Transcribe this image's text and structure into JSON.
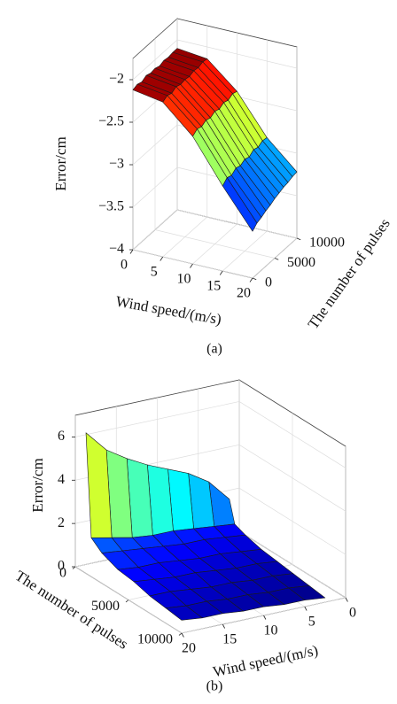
{
  "chart_data": [
    {
      "type": "surface",
      "caption": "(a)",
      "xlabel": "Wind speed/(m/s)",
      "ylabel": "The number of pulses",
      "zlabel": "Error/cm",
      "colormap": "jet",
      "grid": true,
      "x": [
        0,
        5,
        10,
        15,
        20
      ],
      "y": [
        0,
        1000,
        2000,
        3000,
        4000,
        5000,
        6000,
        7000,
        8000,
        9000,
        10000
      ],
      "values": [
        [
          -2.12,
          -2.18,
          -2.5,
          -3.0,
          -3.45
        ],
        [
          -2.1,
          -2.15,
          -2.46,
          -2.95,
          -3.4
        ],
        [
          -2.12,
          -2.17,
          -2.48,
          -2.97,
          -3.38
        ],
        [
          -2.09,
          -2.14,
          -2.45,
          -2.93,
          -3.35
        ],
        [
          -2.11,
          -2.16,
          -2.47,
          -2.95,
          -3.33
        ],
        [
          -2.1,
          -2.15,
          -2.44,
          -2.92,
          -3.3
        ],
        [
          -2.12,
          -2.16,
          -2.46,
          -2.94,
          -3.28
        ],
        [
          -2.1,
          -2.14,
          -2.43,
          -2.9,
          -3.26
        ],
        [
          -2.11,
          -2.15,
          -2.45,
          -2.92,
          -3.25
        ],
        [
          -2.1,
          -2.13,
          -2.42,
          -2.89,
          -3.23
        ],
        [
          -2.1,
          -2.14,
          -2.44,
          -2.9,
          -3.22
        ]
      ],
      "xlim": [
        0,
        20
      ],
      "xticks": [
        0,
        5,
        10,
        15,
        20
      ],
      "ylim": [
        0,
        10000
      ],
      "yticks": [
        0,
        5000,
        10000
      ],
      "zlim": [
        -4,
        -1.75
      ],
      "zticks": [
        {
          "value": -4,
          "label": "−4"
        },
        {
          "value": -3.5,
          "label": "−3.5"
        },
        {
          "value": -3,
          "label": "−3"
        },
        {
          "value": -2.5,
          "label": "−2.5"
        },
        {
          "value": -2,
          "label": "−2"
        }
      ]
    },
    {
      "type": "surface",
      "caption": "(b)",
      "xlabel": "Wind speed/(m/s)",
      "ylabel": "The number of pulses",
      "zlabel": "Error/cm",
      "colormap": "jet",
      "grid": true,
      "x": [
        2.5,
        5,
        7.5,
        10,
        12.5,
        15,
        17.5,
        20
      ],
      "y": [
        1000,
        1500,
        2500,
        4000,
        5500,
        7000,
        8500,
        10000
      ],
      "values": [
        [
          2.0,
          3.0,
          3.6,
          4.0,
          4.4,
          4.9,
          5.5,
          6.5
        ],
        [
          1.0,
          1.1,
          1.2,
          1.3,
          1.3,
          1.4,
          1.6,
          1.8
        ],
        [
          0.8,
          0.9,
          1.0,
          1.0,
          1.1,
          1.2,
          1.3,
          1.4
        ],
        [
          0.6,
          0.7,
          0.8,
          0.8,
          0.9,
          1.0,
          1.0,
          1.1
        ],
        [
          0.5,
          0.6,
          0.6,
          0.7,
          0.8,
          0.8,
          0.9,
          1.0
        ],
        [
          0.4,
          0.5,
          0.5,
          0.6,
          0.6,
          0.7,
          0.8,
          0.8
        ],
        [
          0.3,
          0.4,
          0.4,
          0.5,
          0.5,
          0.6,
          0.6,
          0.7
        ],
        [
          0.2,
          0.3,
          0.3,
          0.4,
          0.4,
          0.5,
          0.5,
          0.6
        ]
      ],
      "xlim": [
        0,
        20
      ],
      "xticks": [
        0,
        5,
        10,
        15,
        20
      ],
      "ylim": [
        0,
        10000
      ],
      "yticks": [
        0,
        5000,
        10000
      ],
      "zlim": [
        0,
        7
      ],
      "zticks": [
        0,
        2,
        4,
        6
      ]
    }
  ]
}
